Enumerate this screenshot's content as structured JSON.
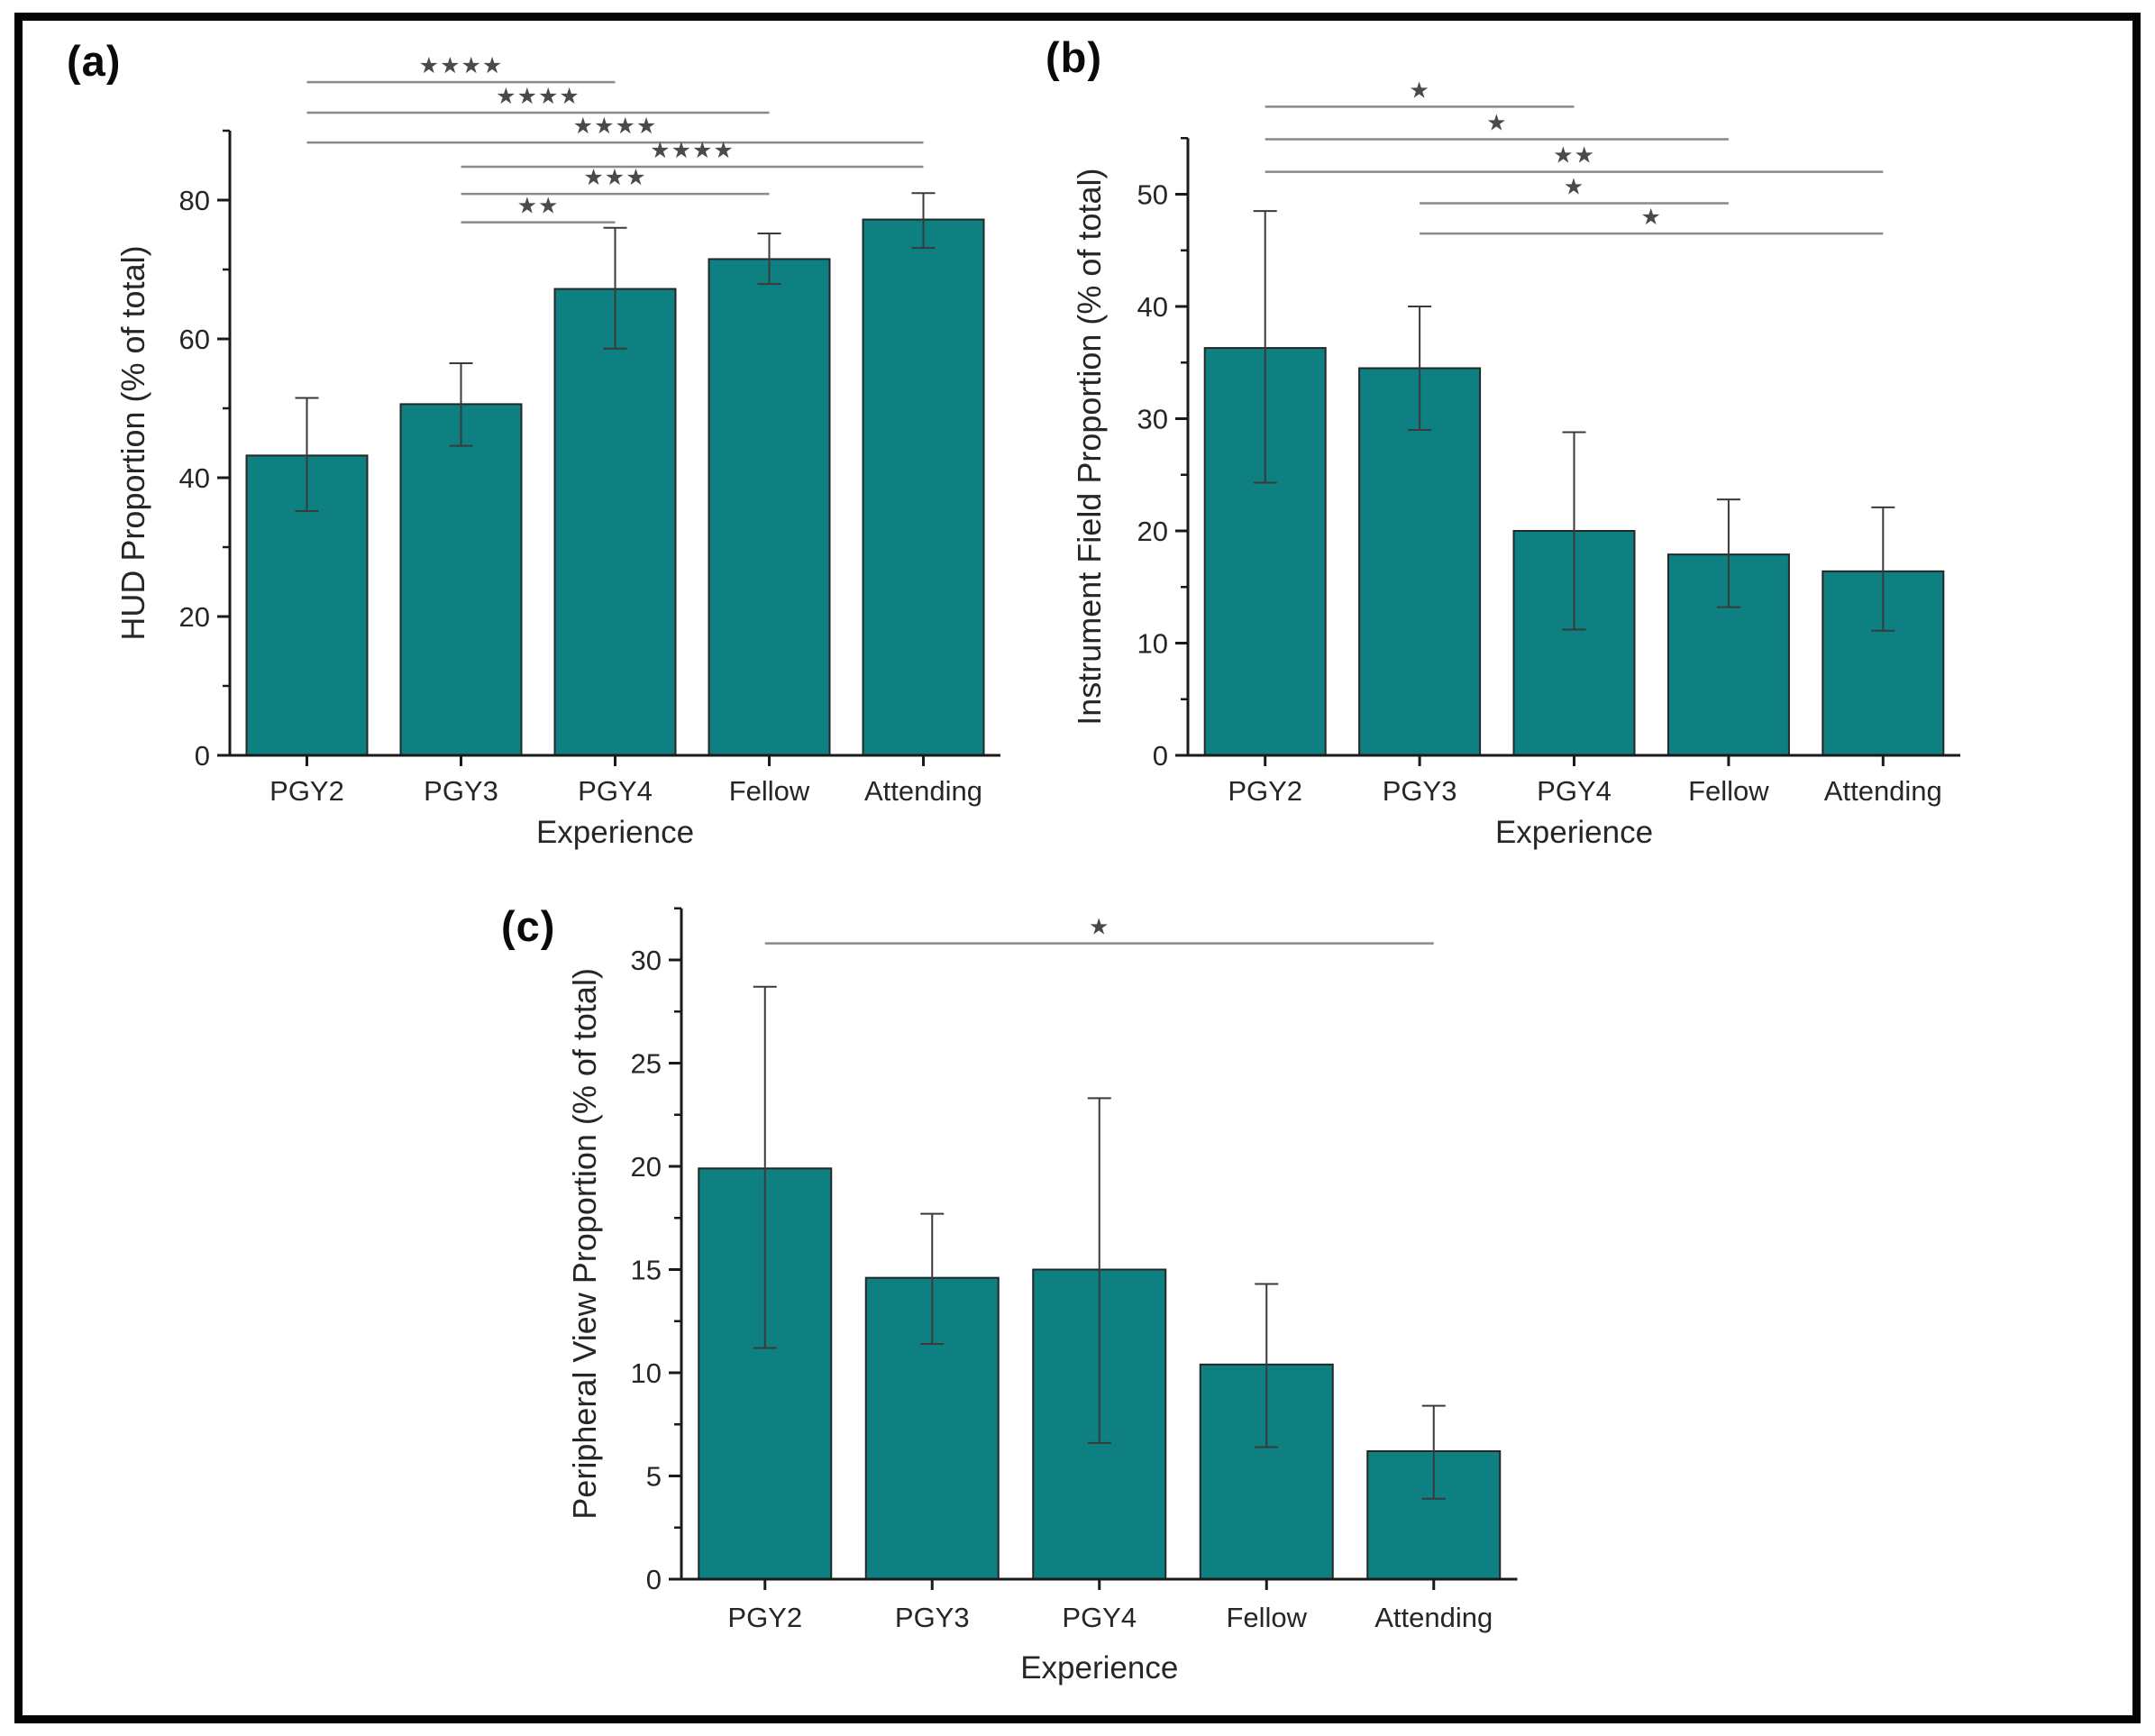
{
  "figure": {
    "star_glyph": "★",
    "colors": {
      "bar_fill": "#0F8081",
      "bar_stroke": "#262626",
      "axis": "#1A1A1A",
      "error_bar": "#3A3A3A",
      "bracket_line": "#8A8A8A",
      "star": "#4A4A4A",
      "text": "#262626",
      "border": "#050505",
      "background": "#FFFFFF"
    }
  },
  "chart_data": [
    {
      "panel": "a",
      "type": "bar",
      "panel_label": "(a)",
      "xlabel": "Experience",
      "ylabel": "HUD Proportion (% of total)",
      "categories": [
        "PGY2",
        "PGY3",
        "PGY4",
        "Fellow",
        "Attending"
      ],
      "values": [
        43.2,
        50.6,
        67.2,
        71.5,
        77.2
      ],
      "error_low": [
        35.2,
        44.6,
        58.6,
        67.9,
        73.1
      ],
      "error_high": [
        51.5,
        56.5,
        76.0,
        75.2,
        81.0
      ],
      "ylim": [
        0,
        90
      ],
      "yticks": [
        0,
        20,
        40,
        60,
        80
      ],
      "minor_tick_step": 10,
      "grid": false,
      "legend": "none",
      "significance": [
        {
          "from": "PGY2",
          "to": "PGY4",
          "label": "****",
          "height": 97.0
        },
        {
          "from": "PGY2",
          "to": "Fellow",
          "label": "****",
          "height": 92.6
        },
        {
          "from": "PGY2",
          "to": "Attending",
          "label": "****",
          "height": 88.3
        },
        {
          "from": "PGY3",
          "to": "Attending",
          "label": "****",
          "height": 84.8
        },
        {
          "from": "PGY3",
          "to": "Fellow",
          "label": "***",
          "height": 80.9
        },
        {
          "from": "PGY3",
          "to": "PGY4",
          "label": "**",
          "height": 76.8
        }
      ]
    },
    {
      "panel": "b",
      "type": "bar",
      "panel_label": "(b)",
      "xlabel": "Experience",
      "ylabel": "Instrument Field Proportion (% of total)",
      "categories": [
        "PGY2",
        "PGY3",
        "PGY4",
        "Fellow",
        "Attending"
      ],
      "values": [
        36.3,
        34.5,
        20.0,
        17.9,
        16.4
      ],
      "error_low": [
        24.3,
        29.0,
        11.2,
        13.2,
        11.1
      ],
      "error_high": [
        48.5,
        40.0,
        28.8,
        22.8,
        22.1
      ],
      "ylim": [
        0,
        55
      ],
      "yticks": [
        0,
        10,
        20,
        30,
        40,
        50
      ],
      "minor_tick_step": 5,
      "grid": false,
      "legend": "none",
      "significance": [
        {
          "from": "PGY2",
          "to": "PGY4",
          "label": "*",
          "height": 57.8
        },
        {
          "from": "PGY2",
          "to": "Fellow",
          "label": "*",
          "height": 54.9
        },
        {
          "from": "PGY2",
          "to": "Attending",
          "label": "**",
          "height": 52.0
        },
        {
          "from": "PGY3",
          "to": "Fellow",
          "label": "*",
          "height": 49.2
        },
        {
          "from": "PGY3",
          "to": "Attending",
          "label": "*",
          "height": 46.5
        }
      ]
    },
    {
      "panel": "c",
      "type": "bar",
      "panel_label": "(c)",
      "xlabel": "Experience",
      "ylabel": "Peripheral View Proportion (% of total)",
      "categories": [
        "PGY2",
        "PGY3",
        "PGY4",
        "Fellow",
        "Attending"
      ],
      "values": [
        19.9,
        14.6,
        15.0,
        10.4,
        6.2
      ],
      "error_low": [
        11.2,
        11.4,
        6.6,
        6.4,
        3.9
      ],
      "error_high": [
        28.7,
        17.7,
        23.3,
        14.3,
        8.4
      ],
      "ylim": [
        0,
        32.5
      ],
      "yticks": [
        0,
        5,
        10,
        15,
        20,
        25,
        30
      ],
      "minor_tick_step": 2.5,
      "grid": false,
      "legend": "none",
      "significance": [
        {
          "from": "PGY2",
          "to": "Attending",
          "label": "*",
          "height": 30.8
        }
      ]
    }
  ]
}
